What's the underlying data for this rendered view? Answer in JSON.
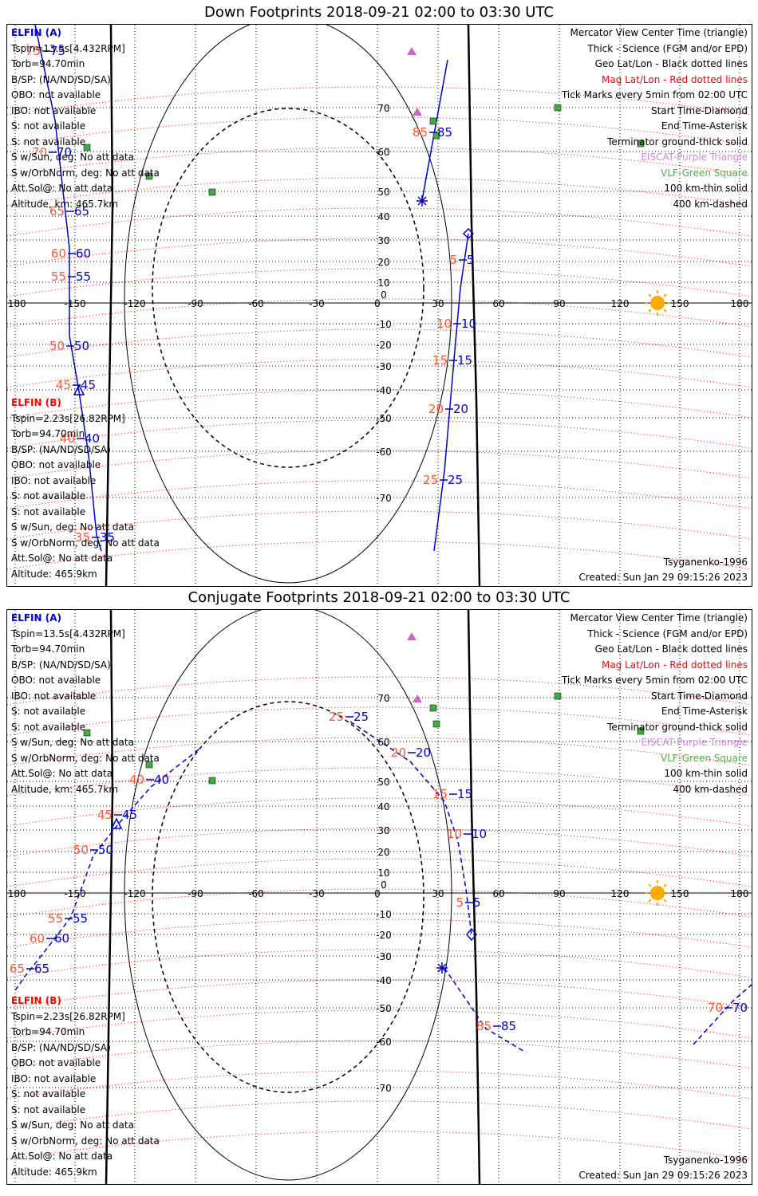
{
  "down": {
    "title": "Down Footprints 2018-09-21 02:00 to 03:30 UTC",
    "sat_a": {
      "name": "ELFIN (A)",
      "tspin": "Tspin=13.5s[4.432RPM]",
      "torb": "Torb=94.70min",
      "bsp": "B/SP: (NA/ND/SD/SA)",
      "obo": "OBO: not available",
      "ibo": "IBO: not available",
      "s1": "S: not available",
      "s2": "S: not available",
      "s_sun": "S w/Sun, deg: No att data",
      "s_orb": "S w/OrbNorm, deg: No att data",
      "att": "Att.Sol@: No att data",
      "alt": "Altitude, km: 465.7km"
    },
    "sat_b": {
      "name": "ELFIN (B)",
      "tspin": "Tspin=2.23s[26.82RPM]",
      "torb": "Torb=94.70min",
      "bsp": "B/SP: (NA/ND/SD/SA)",
      "obo": "OBO: not available",
      "ibo": "IBO: not available",
      "s1": "S: not available",
      "s2": "S: not available",
      "s_sun": "S w/Sun, deg: No att data",
      "s_orb": "S w/OrbNorm, deg: No att data",
      "att": "Att.Sol@: No att data",
      "alt": "Altitude: 465.9km"
    },
    "legend": {
      "center": "Mercator View Center Time (triangle)",
      "thick": "Thick - Science (FGM and/or EPD)",
      "geo": "Geo Lat/Lon - Black dotted lines",
      "mag": "Mag Lat/Lon - Red dotted lines",
      "ticks": "Tick Marks every 5min from 02:00 UTC",
      "start": "Start Time-Diamond",
      "end": "End Time-Asterisk",
      "term": "Terminator ground-thick solid",
      "eiscat": "EISCAT-Purple Triangle",
      "vlf": "VLF-Green Square",
      "km100": "100 km-thin solid",
      "km400": "400 km-dashed"
    },
    "model": "Tsyganenko-1996",
    "created": "Created: Sun Jan 29 09:15:26 2023",
    "lon_ticks": [
      "-180",
      "-150",
      "-120",
      "-90",
      "-60",
      "-30",
      "0",
      "30",
      "60",
      "90",
      "120",
      "150",
      "180"
    ],
    "lat_ticks": [
      "70",
      "60",
      "50",
      "40",
      "30",
      "20",
      "10",
      "0",
      "-10",
      "-20",
      "-30",
      "-40",
      "-50",
      "-60",
      "-70"
    ],
    "track_a_labels": [
      "5",
      "10",
      "15",
      "20",
      "25",
      "85"
    ],
    "track_b_labels": [
      "35",
      "40",
      "45",
      "50",
      "55",
      "60",
      "65",
      "70",
      "75"
    ]
  },
  "conj": {
    "title": "Conjugate Footprints 2018-09-21 02:00 to 03:30 UTC",
    "sat_a": {
      "name": "ELFIN (A)",
      "tspin": "Tspin=13.5s[4.432RPM]",
      "torb": "Torb=94.70min",
      "bsp": "B/SP: (NA/ND/SD/SA)",
      "obo": "OBO: not available",
      "ibo": "IBO: not available",
      "s1": "S: not available",
      "s2": "S: not available",
      "s_sun": "S w/Sun, deg: No att data",
      "s_orb": "S w/OrbNorm, deg: No att data",
      "att": "Att.Sol@: No att data",
      "alt": "Altitude, km: 465.7km"
    },
    "sat_b": {
      "name": "ELFIN (B)",
      "tspin": "Tspin=2.23s[26.82RPM]",
      "torb": "Torb=94.70min",
      "bsp": "B/SP: (NA/ND/SD/SA)",
      "obo": "OBO: not available",
      "ibo": "IBO: not available",
      "s1": "S: not available",
      "s2": "S: not available",
      "s_sun": "S w/Sun, deg: No att data",
      "s_orb": "S w/OrbNorm, deg: No att data",
      "att": "Att.Sol@: No att data",
      "alt": "Altitude: 465.9km"
    },
    "legend": {
      "center": "Mercator View Center Time (triangle)",
      "thick": "Thick - Science (FGM and/or EPD)",
      "geo": "Geo Lat/Lon - Black dotted lines",
      "mag": "Mag Lat/Lon - Red dotted lines",
      "ticks": "Tick Marks every 5min from 02:00 UTC",
      "start": "Start Time-Diamond",
      "end": "End Time-Asterisk",
      "term": "Terminator ground-thick solid",
      "eiscat": "EISCAT-Purple Triangle",
      "vlf": "VLF-Green Square",
      "km100": "100 km-thin solid",
      "km400": "400 km-dashed"
    },
    "model": "Tsyganenko-1996",
    "created": "Created: Sun Jan 29 09:15:26 2023",
    "lon_ticks": [
      "-180",
      "-150",
      "-120",
      "-90",
      "-60",
      "-30",
      "0",
      "30",
      "60",
      "90",
      "120",
      "150",
      "180"
    ],
    "lat_ticks": [
      "70",
      "60",
      "50",
      "40",
      "30",
      "20",
      "10",
      "0",
      "-10",
      "-20",
      "-30",
      "-40",
      "-50",
      "-60",
      "-70"
    ],
    "track_a_labels": [
      "5",
      "10",
      "15",
      "20",
      "25"
    ],
    "track_b_labels": [
      "40",
      "45",
      "50",
      "55",
      "60",
      "65",
      "70",
      "85"
    ]
  },
  "colors": {
    "track": "#0000cc",
    "mag_grid": "#ff0000",
    "mag_label": "#ff5533",
    "geo_grid": "#000000",
    "eiscat": "#cc66cc",
    "vlf": "#44aa44",
    "sun": "#ffaa00",
    "coast": "#bbbbbb"
  }
}
